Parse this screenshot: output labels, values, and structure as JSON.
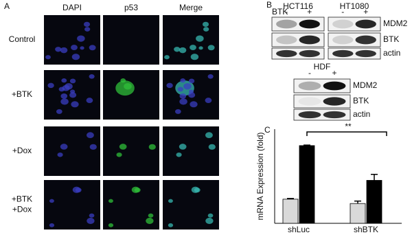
{
  "panel_a": {
    "label": "A",
    "columns": [
      "DAPI",
      "p53",
      "Merge"
    ],
    "rows": [
      [
        "Control"
      ],
      [
        "+BTK"
      ],
      [
        "+Dox"
      ],
      [
        "+BTK",
        "+Dox"
      ]
    ]
  },
  "panel_b": {
    "label": "B",
    "lane_label": "BTK",
    "groups": [
      {
        "blots": [
          {
            "title": "HCT116",
            "lanes": [
              "-",
              "+"
            ]
          },
          {
            "title": "HT1080",
            "lanes": [
              "-",
              "+"
            ]
          }
        ],
        "proteins": [
          "MDM2",
          "BTK",
          "actin"
        ]
      },
      {
        "blots": [
          {
            "title": "HDF",
            "lanes": [
              "-",
              "+"
            ]
          }
        ],
        "proteins": [
          "MDM2",
          "BTK",
          "actin"
        ]
      }
    ]
  },
  "chart_data": {
    "type": "bar",
    "label": "C",
    "y_label": "mRNA Expression (fold)",
    "annotation": "**",
    "categories": [
      "shLuc",
      "shBTK"
    ],
    "series": [
      {
        "color": "#d9d9d9",
        "values": [
          1.0,
          0.82
        ],
        "errors": [
          0.03,
          0.1
        ]
      },
      {
        "color": "#000000",
        "values": [
          3.22,
          1.78
        ],
        "errors": [
          0.02,
          0.25
        ]
      }
    ],
    "ylim": [
      0,
      3.9
    ]
  }
}
